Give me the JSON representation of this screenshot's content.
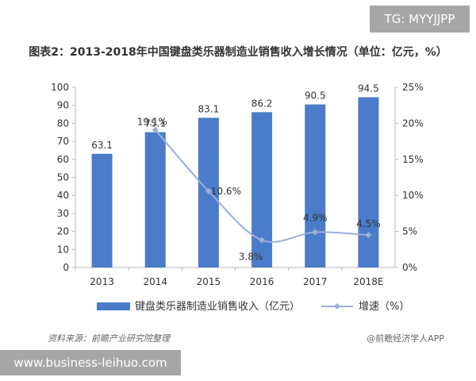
{
  "overlay_tag": "TG: MYYJJPP",
  "title": "图表2：2013-2018年中国键盘类乐器制造业销售收入增长情况（单位：亿元，%）",
  "source": "资料来源：前瞻产业研究院整理",
  "brand": "@前瞻经济学人APP",
  "url_bar": "www.business-leihuo.com",
  "chart_data": {
    "type": "bar",
    "categories": [
      "2013",
      "2014",
      "2015",
      "2016",
      "2017",
      "2018E"
    ],
    "series": [
      {
        "name": "键盘类乐器制造业销售收入（亿元）",
        "kind": "bar",
        "axis": "left",
        "color": "#4a7cc9",
        "values": [
          63.1,
          75.1,
          83.1,
          86.2,
          90.5,
          94.5
        ],
        "labels": [
          "63.1",
          "75.1",
          "83.1",
          "86.2",
          "90.5",
          "94.5"
        ]
      },
      {
        "name": "增速（%）",
        "kind": "line",
        "axis": "right",
        "color": "#9dafd8",
        "values": [
          null,
          19.1,
          10.6,
          3.8,
          4.9,
          4.5
        ],
        "labels": [
          "",
          "19.1%",
          "10.6%",
          "3.8%",
          "4.9%",
          "4.5%"
        ]
      }
    ],
    "y_left": {
      "min": 0,
      "max": 100,
      "step": 10,
      "ticks": [
        "0",
        "10",
        "20",
        "30",
        "40",
        "50",
        "60",
        "70",
        "80",
        "90",
        "100"
      ]
    },
    "y_right": {
      "min": 0,
      "max": 25,
      "step": 5,
      "ticks": [
        "0%",
        "5%",
        "10%",
        "15%",
        "20%",
        "25%"
      ]
    },
    "grid": false,
    "legend": "bottom"
  }
}
